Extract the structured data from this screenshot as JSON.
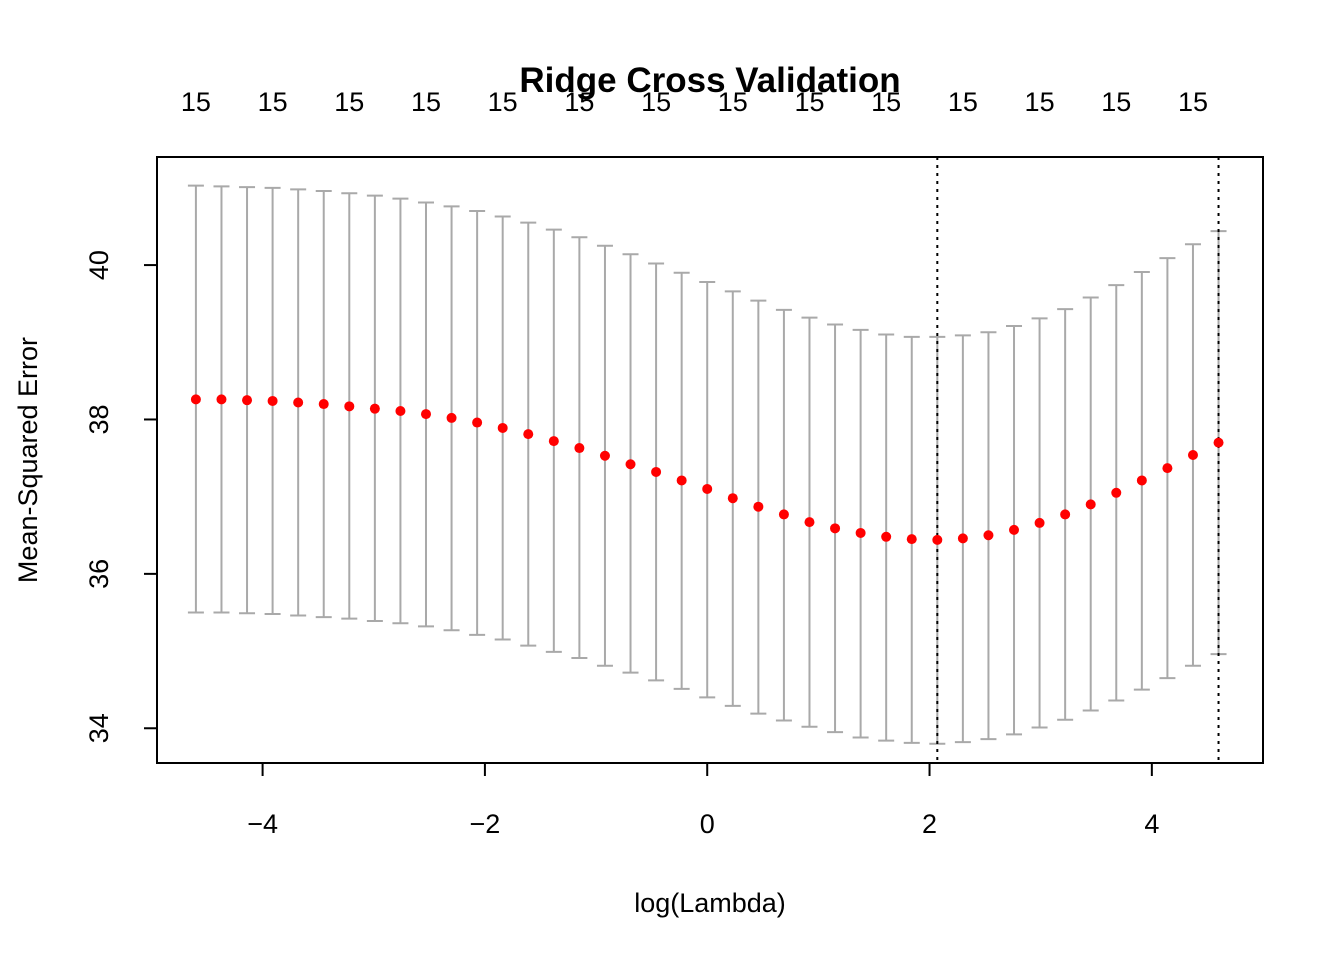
{
  "chart_data": {
    "type": "scatter",
    "title": "Ridge Cross Validation",
    "xlabel": "log(Lambda)",
    "ylabel": "Mean-Squared Error",
    "xlim": [
      -4.95,
      5.0
    ],
    "ylim": [
      33.55,
      41.4
    ],
    "xticks": [
      -4,
      -2,
      0,
      2,
      4
    ],
    "yticks": [
      34,
      36,
      38,
      40
    ],
    "top_axis": {
      "x": [
        -4.6,
        -3.91,
        -3.22,
        -2.53,
        -1.84,
        -1.15,
        -0.46,
        0.23,
        0.92,
        1.61,
        2.3,
        2.99,
        3.68,
        4.37
      ],
      "labels": [
        "15",
        "15",
        "15",
        "15",
        "15",
        "15",
        "15",
        "15",
        "15",
        "15",
        "15",
        "15",
        "15",
        "15"
      ]
    },
    "vlines": [
      2.07,
      4.6
    ],
    "point_color": "#ff0000",
    "errorbar_color": "#a9a9a9",
    "grid": false,
    "series": [
      {
        "x": [
          -4.6,
          -4.37,
          -4.14,
          -3.91,
          -3.68,
          -3.45,
          -3.22,
          -2.99,
          -2.76,
          -2.53,
          -2.3,
          -2.07,
          -1.84,
          -1.61,
          -1.38,
          -1.15,
          -0.92,
          -0.69,
          -0.46,
          -0.23,
          0.0,
          0.23,
          0.46,
          0.69,
          0.92,
          1.15,
          1.38,
          1.61,
          1.84,
          2.07,
          2.3,
          2.53,
          2.76,
          2.99,
          3.22,
          3.45,
          3.68,
          3.91,
          4.14,
          4.37,
          4.6
        ],
        "y": [
          38.26,
          38.26,
          38.25,
          38.24,
          38.22,
          38.2,
          38.17,
          38.14,
          38.11,
          38.07,
          38.02,
          37.96,
          37.89,
          37.81,
          37.72,
          37.63,
          37.53,
          37.42,
          37.32,
          37.21,
          37.1,
          36.98,
          36.87,
          36.77,
          36.67,
          36.59,
          36.53,
          36.48,
          36.45,
          36.44,
          36.46,
          36.5,
          36.57,
          36.66,
          36.77,
          36.9,
          37.05,
          37.21,
          37.37,
          37.54,
          37.7
        ],
        "ymin": [
          35.5,
          35.5,
          35.49,
          35.48,
          35.46,
          35.44,
          35.42,
          35.39,
          35.36,
          35.32,
          35.27,
          35.21,
          35.15,
          35.07,
          34.99,
          34.91,
          34.81,
          34.72,
          34.62,
          34.51,
          34.4,
          34.29,
          34.19,
          34.1,
          34.02,
          33.95,
          33.88,
          33.84,
          33.81,
          33.8,
          33.82,
          33.86,
          33.92,
          34.01,
          34.11,
          34.23,
          34.36,
          34.5,
          34.65,
          34.81,
          34.96
        ],
        "ymax": [
          41.03,
          41.02,
          41.01,
          41.0,
          40.98,
          40.96,
          40.93,
          40.9,
          40.86,
          40.81,
          40.76,
          40.7,
          40.63,
          40.55,
          40.46,
          40.36,
          40.25,
          40.14,
          40.02,
          39.9,
          39.78,
          39.66,
          39.54,
          39.42,
          39.32,
          39.23,
          39.16,
          39.1,
          39.07,
          39.07,
          39.09,
          39.13,
          39.21,
          39.31,
          39.43,
          39.58,
          39.74,
          39.91,
          40.09,
          40.27,
          40.44
        ]
      }
    ]
  }
}
